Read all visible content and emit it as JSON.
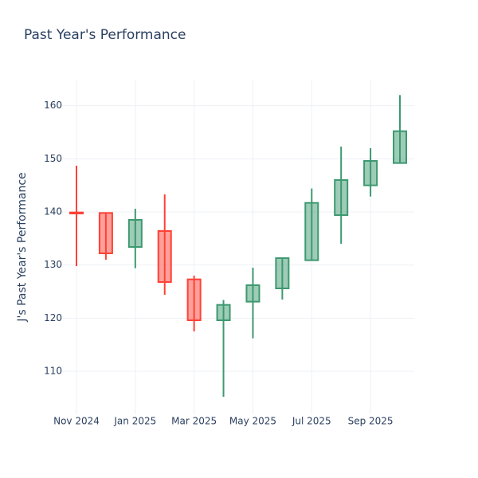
{
  "chart_data": {
    "type": "candlestick",
    "title": "Past Year's Performance",
    "y_label": "J's Past Year's Performance",
    "x": [
      "2024-11",
      "2024-12",
      "2025-01",
      "2025-02",
      "2025-03",
      "2025-04",
      "2025-05",
      "2025-06",
      "2025-07",
      "2025-08",
      "2025-09",
      "2025-10"
    ],
    "open": [
      139.9,
      139.8,
      133.4,
      136.4,
      127.3,
      119.6,
      123.1,
      125.6,
      130.9,
      139.4,
      145.0,
      149.2
    ],
    "high": [
      148.7,
      139.8,
      140.6,
      143.3,
      128.0,
      123.4,
      129.5,
      131.3,
      144.4,
      152.3,
      152.0,
      162.0
    ],
    "low": [
      129.8,
      131.0,
      129.4,
      124.4,
      117.5,
      105.2,
      116.2,
      123.5,
      130.9,
      134.0,
      142.9,
      149.2
    ],
    "close": [
      139.7,
      132.2,
      138.5,
      126.8,
      119.6,
      122.5,
      126.2,
      131.3,
      141.7,
      146.0,
      149.6,
      155.2
    ],
    "increasing_color": "#3d9970",
    "decreasing_color": "#ff4136",
    "ylim": [
      101.9,
      164.9
    ],
    "yticks": [
      110,
      120,
      130,
      140,
      150,
      160
    ],
    "xticks": [
      {
        "value": "2024-11",
        "label": "Nov 2024"
      },
      {
        "value": "2025-01",
        "label": "Jan 2025"
      },
      {
        "value": "2025-03",
        "label": "Mar 2025"
      },
      {
        "value": "2025-05",
        "label": "May 2025"
      },
      {
        "value": "2025-07",
        "label": "Jul 2025"
      },
      {
        "value": "2025-09",
        "label": "Sep 2025"
      }
    ],
    "grid": true
  }
}
